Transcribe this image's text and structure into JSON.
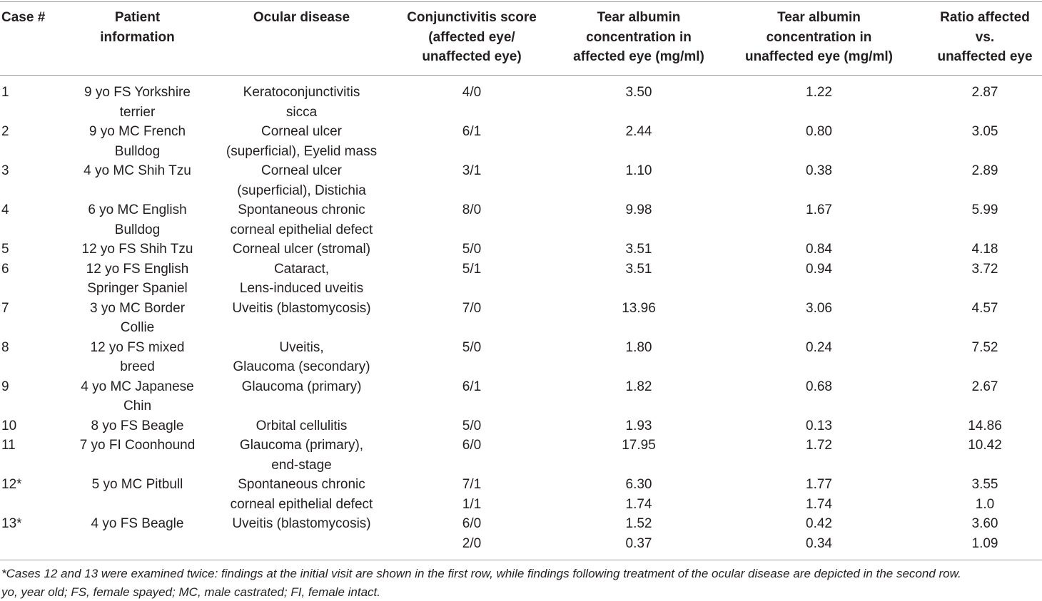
{
  "table": {
    "header": [
      [
        "Case #"
      ],
      [
        "Patient",
        "information"
      ],
      [
        "Ocular disease"
      ],
      [
        "Conjunctivitis score",
        "(affected eye/",
        "unaffected eye)"
      ],
      [
        "Tear albumin",
        "concentration in",
        "affected eye (mg/ml)"
      ],
      [
        "Tear albumin",
        "concentration in",
        "unaffected eye (mg/ml)"
      ],
      [
        "Ratio affected",
        "vs.",
        "unaffected eye"
      ]
    ],
    "rows": [
      {
        "case": "1",
        "patient": [
          "9 yo FS Yorkshire",
          "terrier"
        ],
        "disease": [
          "Keratoconjunctivitis",
          "sicca"
        ],
        "measurements": [
          [
            "4/0",
            "3.50",
            "1.22",
            "2.87"
          ]
        ]
      },
      {
        "case": "2",
        "patient": [
          "9 yo MC French",
          "Bulldog"
        ],
        "disease": [
          "Corneal ulcer",
          "(superficial), Eyelid mass"
        ],
        "measurements": [
          [
            "6/1",
            "2.44",
            "0.80",
            "3.05"
          ]
        ]
      },
      {
        "case": "3",
        "patient": [
          "4 yo MC Shih Tzu"
        ],
        "disease": [
          "Corneal ulcer",
          "(superficial), Distichia"
        ],
        "measurements": [
          [
            "3/1",
            "1.10",
            "0.38",
            "2.89"
          ]
        ]
      },
      {
        "case": "4",
        "patient": [
          "6 yo MC English",
          "Bulldog"
        ],
        "disease": [
          "Spontaneous chronic",
          "corneal epithelial defect"
        ],
        "measurements": [
          [
            "8/0",
            "9.98",
            "1.67",
            "5.99"
          ]
        ]
      },
      {
        "case": "5",
        "patient": [
          "12 yo FS Shih Tzu"
        ],
        "disease": [
          "Corneal ulcer (stromal)"
        ],
        "measurements": [
          [
            "5/0",
            "3.51",
            "0.84",
            "4.18"
          ]
        ]
      },
      {
        "case": "6",
        "patient": [
          "12 yo FS English",
          "Springer Spaniel"
        ],
        "disease": [
          "Cataract,",
          "Lens-induced uveitis"
        ],
        "measurements": [
          [
            "5/1",
            "3.51",
            "0.94",
            "3.72"
          ]
        ]
      },
      {
        "case": "7",
        "patient": [
          "3 yo MC Border",
          "Collie"
        ],
        "disease": [
          "Uveitis (blastomycosis)"
        ],
        "measurements": [
          [
            "7/0",
            "13.96",
            "3.06",
            "4.57"
          ]
        ]
      },
      {
        "case": "8",
        "patient": [
          "12 yo FS mixed",
          "breed"
        ],
        "disease": [
          "Uveitis,",
          "Glaucoma (secondary)"
        ],
        "measurements": [
          [
            "5/0",
            "1.80",
            "0.24",
            "7.52"
          ]
        ]
      },
      {
        "case": "9",
        "patient": [
          "4 yo MC Japanese",
          "Chin"
        ],
        "disease": [
          "Glaucoma (primary)"
        ],
        "measurements": [
          [
            "6/1",
            "1.82",
            "0.68",
            "2.67"
          ]
        ]
      },
      {
        "case": "10",
        "patient": [
          "8 yo FS Beagle"
        ],
        "disease": [
          "Orbital cellulitis"
        ],
        "measurements": [
          [
            "5/0",
            "1.93",
            "0.13",
            "14.86"
          ]
        ]
      },
      {
        "case": "11",
        "patient": [
          "7 yo FI Coonhound"
        ],
        "disease": [
          "Glaucoma (primary),",
          "end-stage"
        ],
        "measurements": [
          [
            "6/0",
            "17.95",
            "1.72",
            "10.42"
          ]
        ]
      },
      {
        "case": "12*",
        "patient": [
          "5 yo MC Pitbull"
        ],
        "disease": [
          "Spontaneous chronic",
          "corneal epithelial defect"
        ],
        "measurements": [
          [
            "7/1",
            "6.30",
            "1.77",
            "3.55"
          ],
          [
            "1/1",
            "1.74",
            "1.74",
            "1.0"
          ]
        ]
      },
      {
        "case": "13*",
        "patient": [
          "4 yo FS Beagle"
        ],
        "disease": [
          "Uveitis (blastomycosis)"
        ],
        "measurements": [
          [
            "6/0",
            "1.52",
            "0.42",
            "3.60"
          ],
          [
            "2/0",
            "0.37",
            "0.34",
            "1.09"
          ]
        ]
      }
    ],
    "footnote": [
      "*Cases 12 and 13 were examined twice: findings at the initial visit are shown in the first row, while findings following treatment of the ocular disease are depicted in the second row.",
      "yo, year old; FS, female spayed; MC, male castrated; FI, female intact."
    ]
  }
}
